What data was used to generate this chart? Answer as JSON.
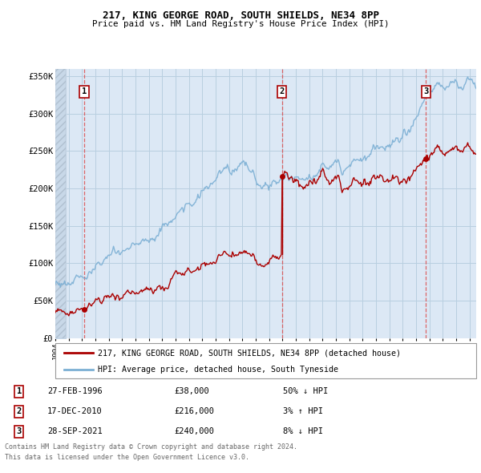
{
  "title_line1": "217, KING GEORGE ROAD, SOUTH SHIELDS, NE34 8PP",
  "title_line2": "Price paid vs. HM Land Registry's House Price Index (HPI)",
  "xlim": [
    1994.0,
    2025.5
  ],
  "ylim": [
    0,
    360000
  ],
  "yticks": [
    0,
    50000,
    100000,
    150000,
    200000,
    250000,
    300000,
    350000
  ],
  "ytick_labels": [
    "£0",
    "£50K",
    "£100K",
    "£150K",
    "£200K",
    "£250K",
    "£300K",
    "£350K"
  ],
  "hpi_color": "#7bafd4",
  "price_color": "#aa0000",
  "dashed_color": "#dd4444",
  "background_plot": "#dce8f5",
  "grid_color": "#b8cfe0",
  "legend_label_price": "217, KING GEORGE ROAD, SOUTH SHIELDS, NE34 8PP (detached house)",
  "legend_label_hpi": "HPI: Average price, detached house, South Tyneside",
  "sales": [
    {
      "num": 1,
      "date": "27-FEB-1996",
      "price": 38000,
      "x": 1996.15,
      "pct": "50%",
      "dir": "↓"
    },
    {
      "num": 2,
      "date": "17-DEC-2010",
      "price": 216000,
      "x": 2010.96,
      "pct": "3%",
      "dir": "↑"
    },
    {
      "num": 3,
      "date": "28-SEP-2021",
      "price": 240000,
      "x": 2021.74,
      "pct": "8%",
      "dir": "↓"
    }
  ],
  "footer_line1": "Contains HM Land Registry data © Crown copyright and database right 2024.",
  "footer_line2": "This data is licensed under the Open Government Licence v3.0.",
  "xtick_start": 1994,
  "xtick_end": 2025,
  "xtick_step": 1,
  "hatch_end": 1994.8
}
